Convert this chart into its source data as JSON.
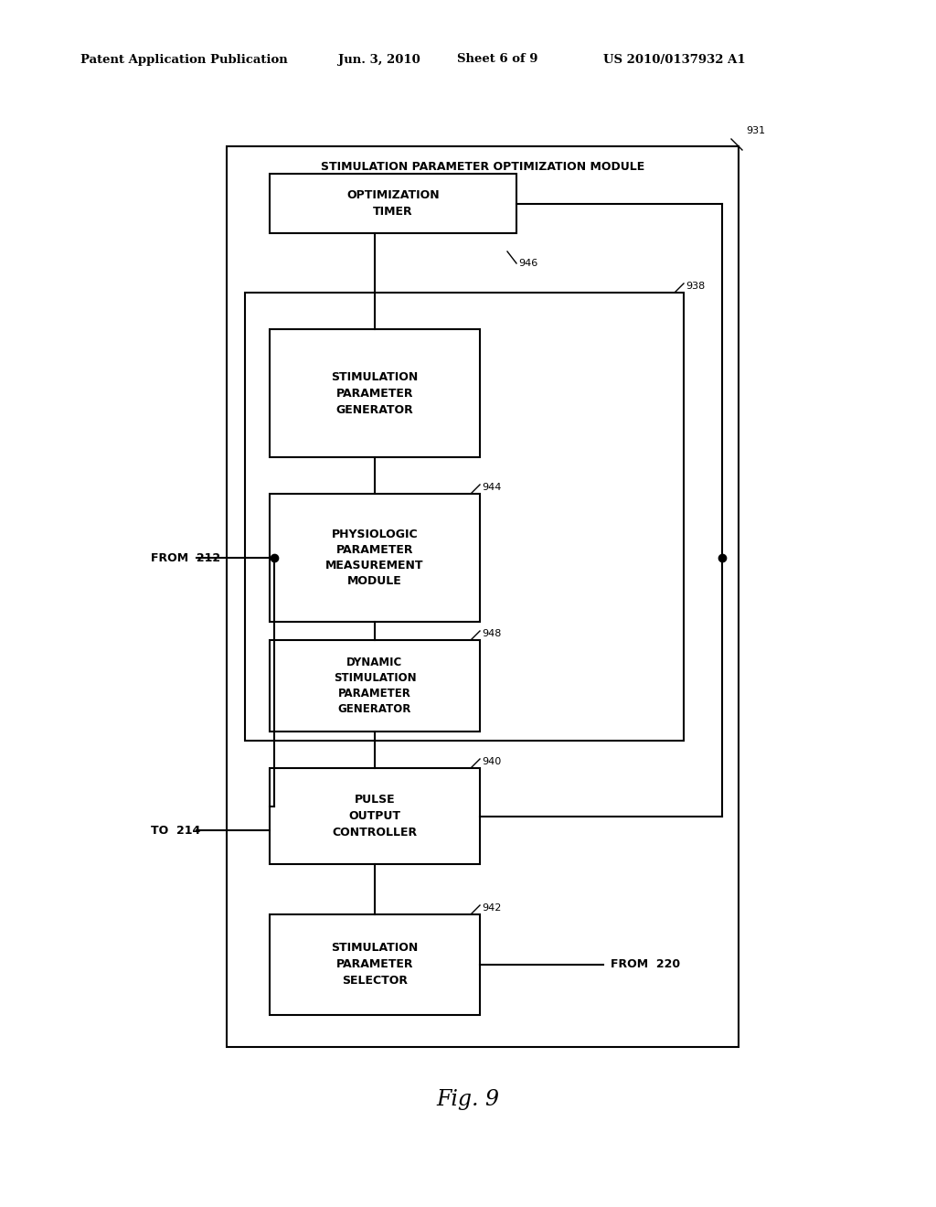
{
  "bg_color": "#ffffff",
  "header_text1": "Patent Application Publication",
  "header_text2": "Jun. 3, 2010",
  "header_text3": "Sheet 6 of 9",
  "header_text4": "US 2010/0137932 A1",
  "fig_label": "Fig. 9",
  "outer_box_label": "STIMULATION PARAMETER OPTIMIZATION MODULE",
  "outer_box_label_num": "931",
  "from_212_label": "FROM  212",
  "to_214_label": "TO  214",
  "from_220_label": "FROM  220"
}
